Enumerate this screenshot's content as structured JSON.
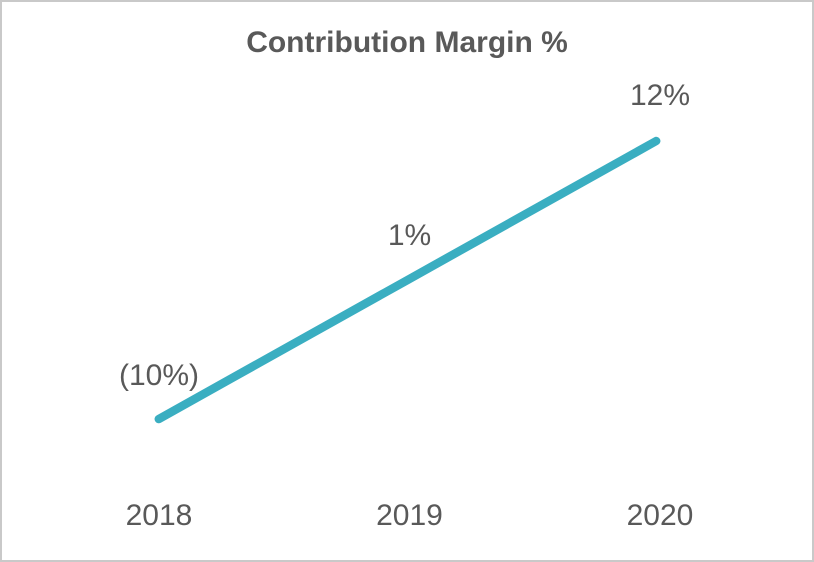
{
  "chart_data": {
    "type": "line",
    "title": "Contribution Margin %",
    "categories": [
      "2018",
      "2019",
      "2020"
    ],
    "series": [
      {
        "name": "Contribution Margin %",
        "values": [
          -10,
          1,
          12
        ]
      }
    ],
    "point_labels": [
      "(10%)",
      "1%",
      "12%"
    ],
    "label_position": "above",
    "xlabel": "",
    "ylabel": "",
    "ylim": [
      -10,
      12
    ],
    "grid": false,
    "legend": "none",
    "line_color": "#3AAEC1",
    "text_color": "#595959"
  },
  "frame": {
    "background": "#FFFFFF",
    "border_color": "#C9C9C9"
  }
}
